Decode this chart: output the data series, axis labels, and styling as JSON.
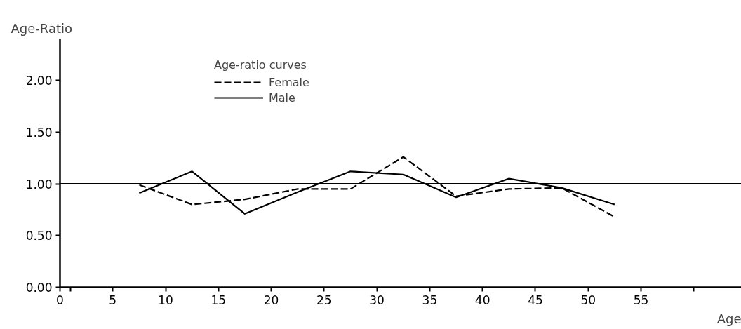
{
  "chart_data": {
    "type": "line",
    "xlabel": "Age",
    "ylabel": "Age-Ratio",
    "legend_title": "Age-ratio curves",
    "x": [
      7.5,
      12.5,
      17.5,
      22.5,
      27.5,
      32.5,
      37.5,
      42.5,
      47.5,
      52.5
    ],
    "series": [
      {
        "name": "Female",
        "color": "#000000",
        "line_style": "dashed",
        "values": [
          0.99,
          0.8,
          0.85,
          0.95,
          0.95,
          1.26,
          0.88,
          0.95,
          0.96,
          0.68
        ]
      },
      {
        "name": "Male",
        "color": "#000000",
        "line_style": "solid",
        "values": [
          0.91,
          1.12,
          0.71,
          0.92,
          1.12,
          1.09,
          0.87,
          1.05,
          0.96,
          0.8
        ]
      }
    ],
    "xlim": [
      0,
      64.5
    ],
    "xticks": [
      0,
      {
        "value": 1,
        "label": null
      },
      5,
      10,
      15,
      20,
      25,
      30,
      35,
      40,
      45,
      50,
      55,
      {
        "value": 60,
        "label": null
      }
    ],
    "ylim": [
      0,
      2.4
    ],
    "yticks": [
      {
        "value": 0,
        "label": "0.00"
      },
      {
        "value": 0.5,
        "label": "0.50"
      },
      {
        "value": 1,
        "label": "1.00"
      },
      {
        "value": 1.5,
        "label": "1.50"
      },
      {
        "value": 2,
        "label": "2.00"
      }
    ],
    "ref_lines": [
      {
        "axis": "y",
        "value": 1,
        "label": null,
        "color": "#000000",
        "line_style": "solid"
      }
    ],
    "grid": false,
    "legend": "top left",
    "marker": "none"
  }
}
